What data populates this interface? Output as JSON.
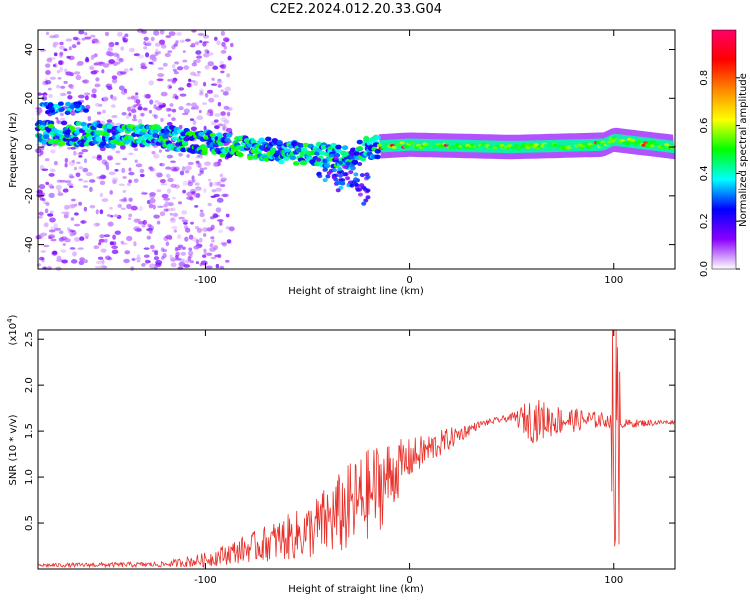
{
  "title": "C2E2.2024.012.20.33.G04",
  "chart_data": [
    {
      "type": "heatmap",
      "xlabel": "Height of straight line (km)",
      "ylabel": "Frequency (Hz)",
      "xlim": [
        -182,
        130
      ],
      "ylim": [
        -50,
        48
      ],
      "x_ticks": [
        -100,
        0,
        100
      ],
      "y_ticks": [
        -40,
        -20,
        0,
        20,
        40
      ],
      "colorbar": {
        "label": "Normalized spectral amplitude",
        "range": [
          0,
          1
        ],
        "ticks": [
          "0.0",
          "0.2",
          "0.4",
          "0.6",
          "0.8"
        ],
        "colors": [
          "#ffffff",
          "#8a00ff",
          "#0000ff",
          "#00ffff",
          "#00ff00",
          "#ffff00",
          "#ff8800",
          "#ff0000",
          "#ff0066"
        ]
      },
      "ridge_center_hz": [
        {
          "x": -182,
          "y": 6
        },
        {
          "x": -120,
          "y": 4
        },
        {
          "x": -80,
          "y": 0
        },
        {
          "x": -50,
          "y": -3
        },
        {
          "x": -30,
          "y": -4
        },
        {
          "x": -20,
          "y": 0
        },
        {
          "x": 0,
          "y": 1
        },
        {
          "x": 50,
          "y": 0
        },
        {
          "x": 95,
          "y": 1
        },
        {
          "x": 100,
          "y": 3
        },
        {
          "x": 130,
          "y": 0
        }
      ]
    },
    {
      "type": "line",
      "xlabel": "Height of straight line (km)",
      "ylabel": "SNR (10 * v/v)",
      "y_multiplier_label": "(x10",
      "y_multiplier_exp": "4",
      "y_multiplier_close": ")",
      "xlim": [
        -182,
        130
      ],
      "ylim": [
        0,
        2.6
      ],
      "x_ticks": [
        -100,
        0,
        100
      ],
      "y_ticks": [
        0.5,
        1.0,
        1.5,
        2.0,
        2.5
      ],
      "y_tick_labels": [
        "0.5",
        "1.0",
        "1.5",
        "2.0",
        "2.5"
      ],
      "color": "#e8302a",
      "envelope": [
        {
          "x": -182,
          "mean": 0.04,
          "amp": 0.02
        },
        {
          "x": -120,
          "mean": 0.05,
          "amp": 0.03
        },
        {
          "x": -100,
          "mean": 0.1,
          "amp": 0.08
        },
        {
          "x": -80,
          "mean": 0.22,
          "amp": 0.15
        },
        {
          "x": -50,
          "mean": 0.4,
          "amp": 0.3
        },
        {
          "x": -30,
          "mean": 0.65,
          "amp": 0.5
        },
        {
          "x": -15,
          "mean": 0.9,
          "amp": 0.5
        },
        {
          "x": 0,
          "mean": 1.2,
          "amp": 0.22
        },
        {
          "x": 20,
          "mean": 1.42,
          "amp": 0.12
        },
        {
          "x": 35,
          "mean": 1.58,
          "amp": 0.03
        },
        {
          "x": 50,
          "mean": 1.65,
          "amp": 0.04
        },
        {
          "x": 60,
          "mean": 1.62,
          "amp": 0.25
        },
        {
          "x": 75,
          "mean": 1.62,
          "amp": 0.15
        },
        {
          "x": 95,
          "mean": 1.62,
          "amp": 0.08
        },
        {
          "x": 105,
          "mean": 1.58,
          "amp": 0.05
        },
        {
          "x": 130,
          "mean": 1.6,
          "amp": 0.02
        }
      ]
    }
  ]
}
